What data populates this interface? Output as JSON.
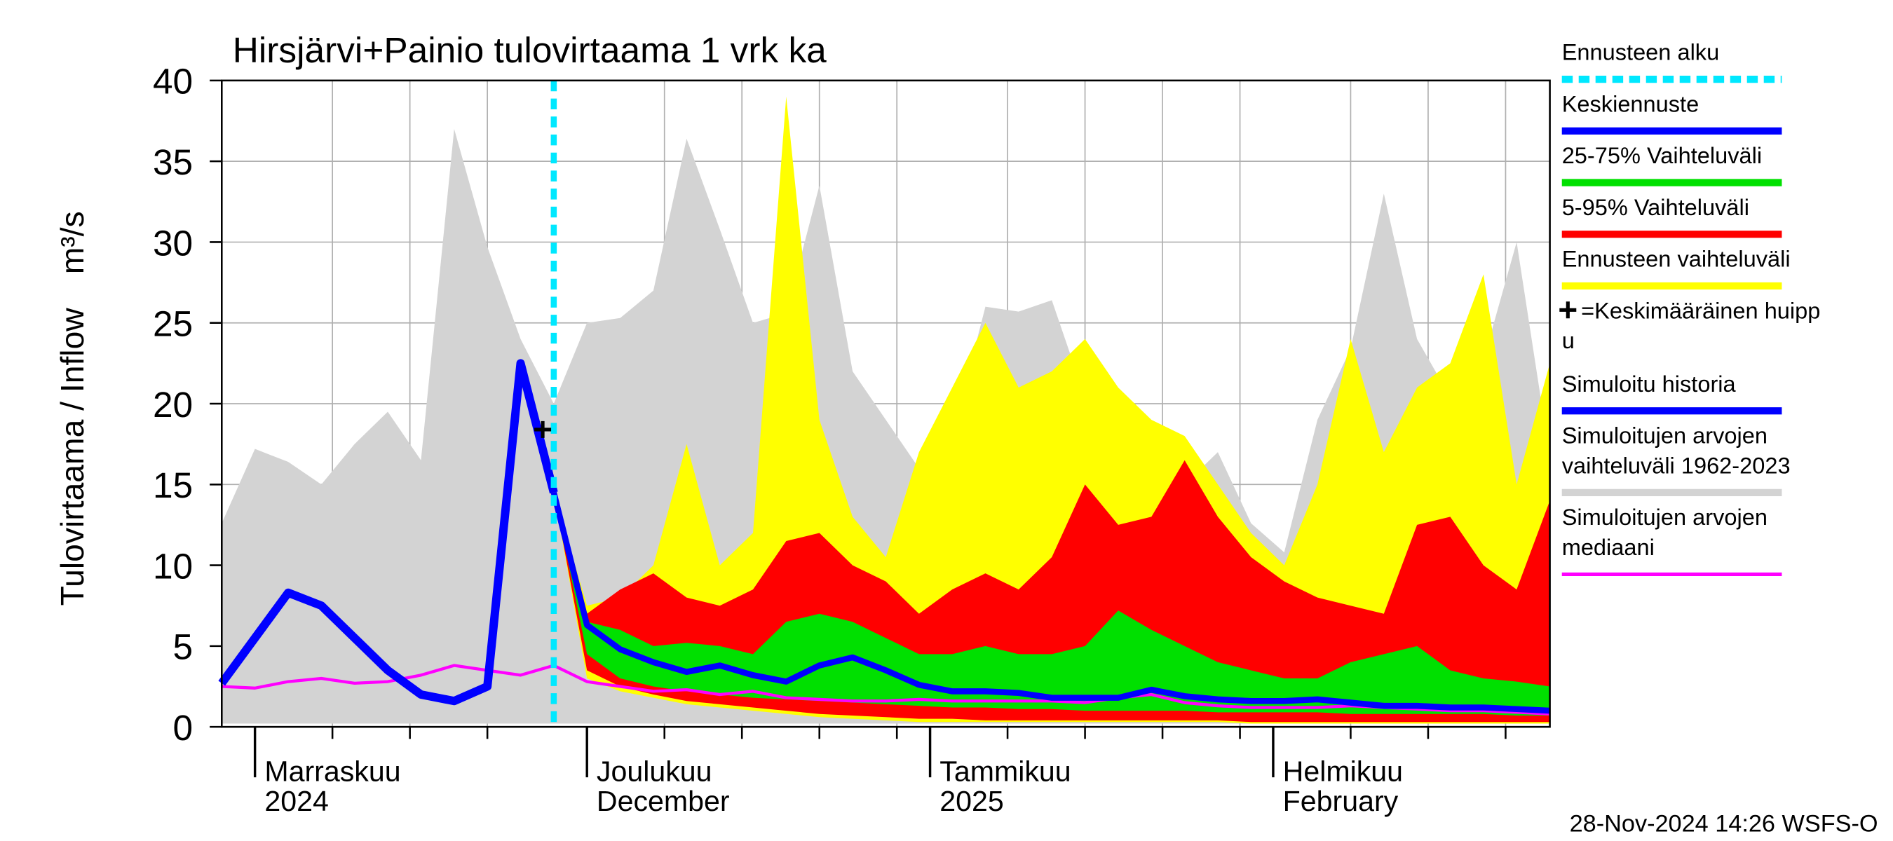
{
  "chart_data": {
    "type": "band-forecast",
    "title": "Hirsjärvi+Painio tulovirtaama 1 vrk ka",
    "ylabel": "Tulovirtaama / Inflow",
    "yunit": "m³/s",
    "footer": "28-Nov-2024 14:26 WSFS-O",
    "ylim": [
      0,
      40
    ],
    "yticks": [
      0,
      5,
      10,
      15,
      20,
      25,
      30,
      35,
      40
    ],
    "xlim": [
      -3,
      117
    ],
    "xticks": [
      {
        "value": 0,
        "label": [
          "Marraskuu",
          "2024"
        ]
      },
      {
        "value": 30,
        "label": [
          "Joulukuu",
          "December"
        ]
      },
      {
        "value": 61,
        "label": [
          "Tammikuu",
          "2025"
        ]
      },
      {
        "value": 92,
        "label": [
          "Helmikuu",
          "February"
        ]
      }
    ],
    "xgrid": [
      7,
      14,
      21,
      37,
      44,
      51,
      58,
      68,
      75,
      82,
      89,
      99,
      106,
      113
    ],
    "grid": true,
    "x": [
      -3,
      0,
      3,
      6,
      9,
      12,
      15,
      18,
      21,
      24,
      27,
      30,
      33,
      36,
      39,
      42,
      45,
      48,
      51,
      54,
      57,
      60,
      63,
      66,
      69,
      72,
      75,
      78,
      81,
      84,
      87,
      90,
      93,
      96,
      99,
      102,
      105,
      108,
      111,
      114,
      117
    ],
    "series": [
      {
        "name": "Ennusteen alku",
        "kind": "vline",
        "color": "#00e8ff",
        "x": 27
      },
      {
        "name": "Keskiennuste",
        "kind": "line",
        "color": "#0000ff",
        "values": [
          null,
          null,
          null,
          null,
          null,
          null,
          null,
          null,
          null,
          null,
          14.5,
          6.3,
          4.8,
          4,
          3.4,
          3.8,
          3.2,
          2.8,
          3.8,
          4.3,
          3.5,
          2.6,
          2.2,
          2.2,
          2.1,
          1.8,
          1.8,
          1.8,
          2.3,
          1.9,
          1.7,
          1.6,
          1.6,
          1.7,
          1.5,
          1.3,
          1.3,
          1.2,
          1.2,
          1.1,
          1.0
        ]
      },
      {
        "name": "25-75% Vaihteluväli",
        "kind": "band",
        "color": "#00e000",
        "upper": [
          null,
          null,
          null,
          null,
          null,
          null,
          null,
          null,
          null,
          null,
          14.5,
          6.5,
          6,
          5,
          5.2,
          5,
          4.5,
          6.5,
          7,
          6.5,
          5.5,
          4.5,
          4.5,
          5,
          4.5,
          4.5,
          5,
          7.2,
          6,
          5,
          4,
          3.5,
          3,
          3,
          4,
          4.5,
          5,
          3.5,
          3,
          2.8,
          2.5
        ],
        "lower": [
          null,
          null,
          null,
          null,
          null,
          null,
          null,
          null,
          null,
          null,
          14.5,
          4.5,
          3,
          2.5,
          2.2,
          2,
          1.8,
          1.7,
          1.6,
          1.5,
          1.4,
          1.3,
          1.2,
          1.2,
          1.1,
          1.1,
          1.0,
          1.0,
          1.0,
          1.0,
          0.9,
          0.9,
          0.9,
          0.9,
          0.8,
          0.8,
          0.8,
          0.8,
          0.8,
          0.7,
          0.7
        ]
      },
      {
        "name": "5-95% Vaihteluväli",
        "kind": "band",
        "color": "#ff0000",
        "upper": [
          null,
          null,
          null,
          null,
          null,
          null,
          null,
          null,
          null,
          null,
          14.5,
          7,
          8.5,
          9.5,
          8,
          7.5,
          8.5,
          11.5,
          12,
          10,
          9,
          7,
          8.5,
          9.5,
          8.5,
          10.5,
          15,
          12.5,
          13,
          16.5,
          13,
          10.5,
          9,
          8,
          7.5,
          7,
          12.5,
          13,
          10,
          8.5,
          14
        ],
        "lower": [
          null,
          null,
          null,
          null,
          null,
          null,
          null,
          null,
          null,
          null,
          14.5,
          3.5,
          2.5,
          2,
          1.6,
          1.4,
          1.2,
          1.0,
          0.8,
          0.7,
          0.6,
          0.5,
          0.5,
          0.4,
          0.4,
          0.4,
          0.4,
          0.4,
          0.4,
          0.4,
          0.4,
          0.3,
          0.3,
          0.3,
          0.3,
          0.3,
          0.3,
          0.3,
          0.3,
          0.3,
          0.3
        ]
      },
      {
        "name": "Ennusteen vaihteluväli",
        "kind": "band",
        "color": "#ffff00",
        "upper": [
          null,
          null,
          null,
          null,
          null,
          null,
          null,
          null,
          null,
          null,
          14.5,
          7.5,
          8,
          10,
          17.5,
          10,
          12,
          39,
          19,
          13,
          10.5,
          17,
          21,
          25,
          21,
          22,
          24,
          21,
          19,
          18,
          15,
          12,
          10,
          15,
          24,
          17,
          21,
          22.5,
          28,
          15,
          22.5
        ],
        "lower": [
          null,
          null,
          null,
          null,
          null,
          null,
          null,
          null,
          null,
          null,
          14.5,
          3,
          2.2,
          1.8,
          1.4,
          1.2,
          1.0,
          0.8,
          0.6,
          0.5,
          0.4,
          0.3,
          0.3,
          0.3,
          0.3,
          0.3,
          0.3,
          0.3,
          0.3,
          0.3,
          0.3,
          0.2,
          0.2,
          0.2,
          0.2,
          0.2,
          0.2,
          0.2,
          0.2,
          0.2,
          0.2
        ]
      },
      {
        "name": [
          "=Keskimääräinen huipp",
          "u"
        ],
        "kind": "marker",
        "color": "#000000",
        "x": 26,
        "value": 18.4
      },
      {
        "name": "Simuloitu historia",
        "kind": "line",
        "color": "#0000ff",
        "values": [
          2.7,
          5.5,
          8.3,
          7.5,
          5.5,
          3.5,
          2,
          1.6,
          2.5,
          22.5,
          14.5,
          null,
          null,
          null,
          null,
          null,
          null,
          null,
          null,
          null,
          null,
          null,
          null,
          null,
          null,
          null,
          null,
          null,
          null,
          null,
          null,
          null,
          null,
          null,
          null,
          null,
          null,
          null,
          null,
          null,
          null
        ]
      },
      {
        "name": [
          "Simuloitujen arvojen",
          "vaihteluväli 1962-2023"
        ],
        "kind": "band",
        "color": "#d3d3d3",
        "upper": [
          12.6,
          17.2,
          16.4,
          15,
          17.5,
          19.5,
          16.5,
          37,
          29.7,
          24,
          20,
          25,
          25.3,
          27,
          36.4,
          30.8,
          25,
          25.6,
          33.5,
          22,
          19,
          16,
          18,
          26,
          25.7,
          26.4,
          20.4,
          19,
          16,
          15,
          17,
          12.6,
          10.8,
          19,
          23.4,
          33,
          24,
          20.4,
          22.7,
          30,
          16.7
        ],
        "lower": [
          0.2,
          0.2,
          0.2,
          0.2,
          0.2,
          0.2,
          0.2,
          0.2,
          0.2,
          0.2,
          0.2,
          0.2,
          0.2,
          0.2,
          0.2,
          0.2,
          0.2,
          0.2,
          0.2,
          0.2,
          0.2,
          0.2,
          0.2,
          0.2,
          0.2,
          0.2,
          0.2,
          0.2,
          0.2,
          0.2,
          0.2,
          0.2,
          0.2,
          0.2,
          0.2,
          0.2,
          0.2,
          0.2,
          0.2,
          0.2,
          0.2
        ]
      },
      {
        "name": [
          "Simuloitujen arvojen",
          "mediaani"
        ],
        "kind": "line",
        "color": "#ff00ff",
        "values": [
          2.5,
          2.4,
          2.8,
          3,
          2.7,
          2.8,
          3.2,
          3.8,
          3.5,
          3.2,
          3.8,
          2.8,
          2.5,
          2.2,
          2.3,
          2.0,
          2.2,
          1.8,
          1.7,
          1.6,
          1.6,
          1.7,
          1.6,
          1.6,
          1.6,
          1.6,
          1.5,
          1.8,
          2.0,
          1.5,
          1.3,
          1.2,
          1.2,
          1.2,
          1.3,
          1.2,
          1.1,
          1.0,
          1.0,
          0.9,
          0.8
        ]
      }
    ]
  }
}
